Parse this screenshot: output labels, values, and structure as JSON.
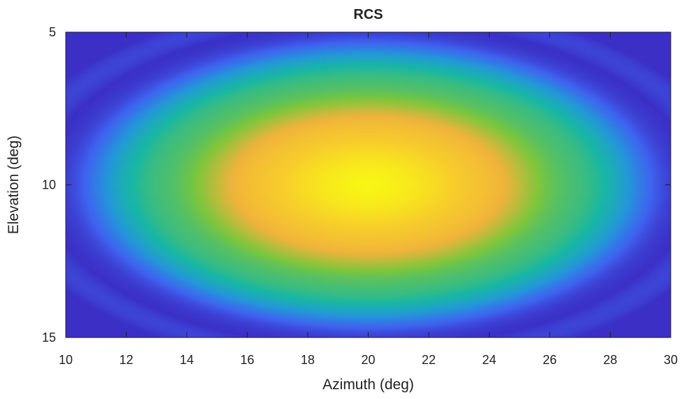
{
  "chart_data": {
    "type": "heatmap",
    "title": "RCS",
    "xlabel": "Azimuth (deg)",
    "ylabel": "Elevation (deg)",
    "xlim": [
      10,
      30
    ],
    "ylim": [
      5,
      15
    ],
    "y_direction": "reverse",
    "xticks": [
      10,
      12,
      14,
      16,
      18,
      20,
      22,
      24,
      26,
      28,
      30
    ],
    "yticks": [
      5,
      10,
      15
    ],
    "colormap": "parula",
    "colorbar": false,
    "pattern": {
      "peak": [
        20,
        10
      ],
      "peak_color": "#f5f514",
      "edge_color": "#3d3dd8"
    },
    "colormap_stops": [
      {
        "value": 0.0,
        "color": "#3b2fc5"
      },
      {
        "value": 0.12,
        "color": "#3f63f0"
      },
      {
        "value": 0.28,
        "color": "#2497da"
      },
      {
        "value": 0.44,
        "color": "#18b7a4"
      },
      {
        "value": 0.6,
        "color": "#7cc63c"
      },
      {
        "value": 0.75,
        "color": "#f0b33b"
      },
      {
        "value": 0.88,
        "color": "#f7cf2a"
      },
      {
        "value": 1.0,
        "color": "#f7f614"
      }
    ]
  }
}
